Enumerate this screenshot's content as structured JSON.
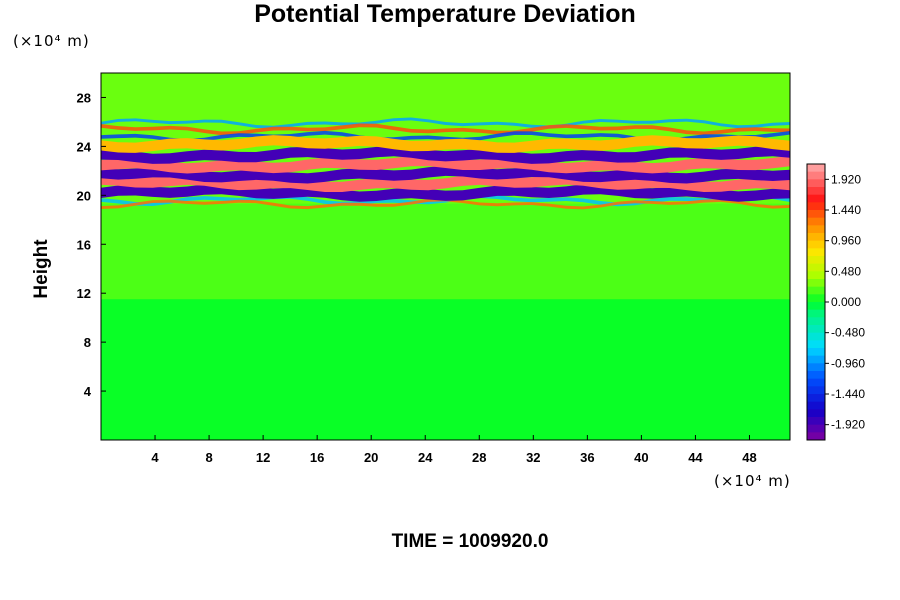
{
  "title": "Potential Temperature Deviation",
  "y_unit": "(×10⁴ m)",
  "x_unit": "(×10⁴ m)",
  "time_label": "TIME = 1009920.0",
  "chart_data": {
    "type": "heatmap",
    "title": "Potential Temperature Deviation",
    "xlabel": "",
    "ylabel": "Height",
    "xlim": [
      0,
      51
    ],
    "ylim": [
      0,
      30
    ],
    "x_ticks": [
      "4",
      "8",
      "12",
      "16",
      "20",
      "24",
      "28",
      "32",
      "36",
      "40",
      "44",
      "48"
    ],
    "y_ticks": [
      "4",
      "8",
      "12",
      "16",
      "20",
      "24",
      "28"
    ],
    "x_tick_values": [
      4,
      8,
      12,
      16,
      20,
      24,
      28,
      32,
      36,
      40,
      44,
      48
    ],
    "y_tick_values": [
      4,
      8,
      12,
      16,
      20,
      24,
      28
    ],
    "colorbar": {
      "range": [
        -2.16,
        2.16
      ],
      "tick_labels": [
        "1.920",
        "1.440",
        "0.960",
        "0.480",
        "0.000",
        "-0.480",
        "-0.960",
        "-1.440",
        "-1.920"
      ],
      "tick_values": [
        1.92,
        1.44,
        0.96,
        0.48,
        0.0,
        -0.48,
        -0.96,
        -1.44,
        -1.92
      ]
    },
    "bands": [
      {
        "height": 20.2,
        "value": -1.9
      },
      {
        "height": 21.0,
        "value": 1.9
      },
      {
        "height": 21.7,
        "value": -1.9
      },
      {
        "height": 22.5,
        "value": 1.9
      },
      {
        "height": 23.3,
        "value": -1.9
      },
      {
        "height": 24.2,
        "value": 1.0
      }
    ]
  }
}
